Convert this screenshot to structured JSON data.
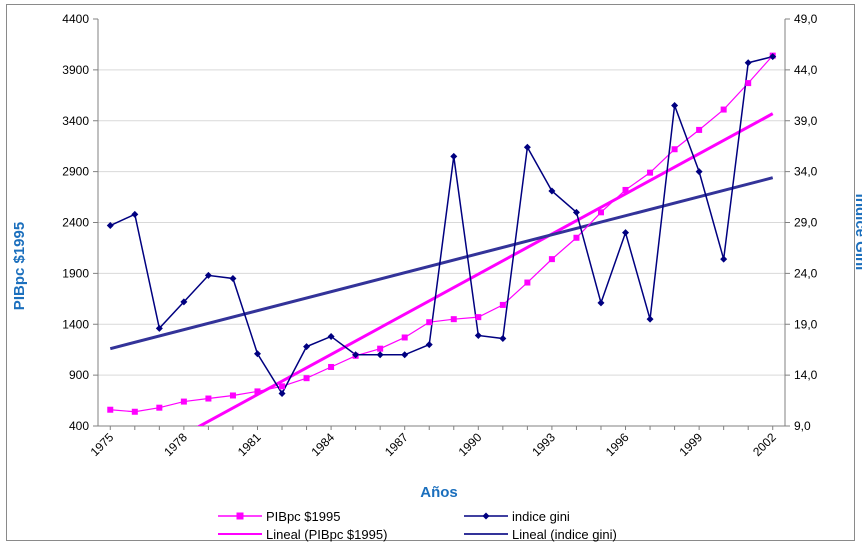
{
  "colors": {
    "pib": "#ff00ff",
    "gini": "#000080",
    "pib_trend": "#ff00ff",
    "gini_trend": "#333399",
    "axis_title": "#1b6fbd",
    "grid": "#d9d9d9",
    "axis": "#808080"
  },
  "chart_data": {
    "type": "line",
    "xlabel": "Años",
    "ylabel_left": "PIBpc $1995",
    "ylabel_right": "Índice Gini",
    "x": [
      1975,
      1976,
      1977,
      1978,
      1979,
      1980,
      1981,
      1982,
      1983,
      1984,
      1985,
      1986,
      1987,
      1988,
      1989,
      1990,
      1991,
      1992,
      1993,
      1994,
      1995,
      1996,
      1997,
      1998,
      1999,
      2000,
      2001,
      2002
    ],
    "x_tick_labels": [
      "1975",
      "1978",
      "1981",
      "1984",
      "1987",
      "1990",
      "1993",
      "1996",
      "1999",
      "2002"
    ],
    "x_ticks": [
      1975,
      1978,
      1981,
      1984,
      1987,
      1990,
      1993,
      1996,
      1999,
      2002
    ],
    "ylim_left": [
      400,
      4400
    ],
    "y_ticks_left": [
      "400",
      "900",
      "1400",
      "1900",
      "2400",
      "2900",
      "3400",
      "3900",
      "4400"
    ],
    "ylim_right": [
      9.0,
      49.0
    ],
    "y_ticks_right": [
      "9,0",
      "14,0",
      "19,0",
      "24,0",
      "29,0",
      "34,0",
      "39,0",
      "44,0",
      "49,0"
    ],
    "grid": "horizontal",
    "legend_position": "bottom",
    "series": [
      {
        "name": "PIBpc $1995",
        "axis": "left",
        "marker": "square",
        "values": [
          560,
          540,
          580,
          640,
          670,
          700,
          740,
          790,
          870,
          980,
          1090,
          1160,
          1270,
          1420,
          1450,
          1470,
          1590,
          1810,
          2040,
          2250,
          2500,
          2720,
          2890,
          3120,
          3310,
          3510,
          3770,
          4040
        ]
      },
      {
        "name": "indice gini",
        "axis": "right",
        "marker": "diamond",
        "values": [
          28.7,
          29.8,
          18.6,
          21.2,
          23.8,
          23.5,
          16.1,
          12.2,
          16.8,
          17.8,
          16.0,
          16.0,
          16.0,
          17.0,
          35.5,
          17.9,
          17.6,
          36.4,
          32.1,
          30.0,
          21.1,
          28.0,
          19.5,
          40.5,
          34.0,
          25.4,
          44.7,
          45.3
        ]
      },
      {
        "name": "Lineal (PIBpc $1995)",
        "axis": "left",
        "type": "trendline",
        "start": [
          1975,
          -80
        ],
        "end": [
          2002,
          3470
        ]
      },
      {
        "name": "Lineal (indice gini)",
        "axis": "right",
        "type": "trendline",
        "start": [
          1975,
          16.6
        ],
        "end": [
          2002,
          33.4
        ]
      }
    ]
  }
}
